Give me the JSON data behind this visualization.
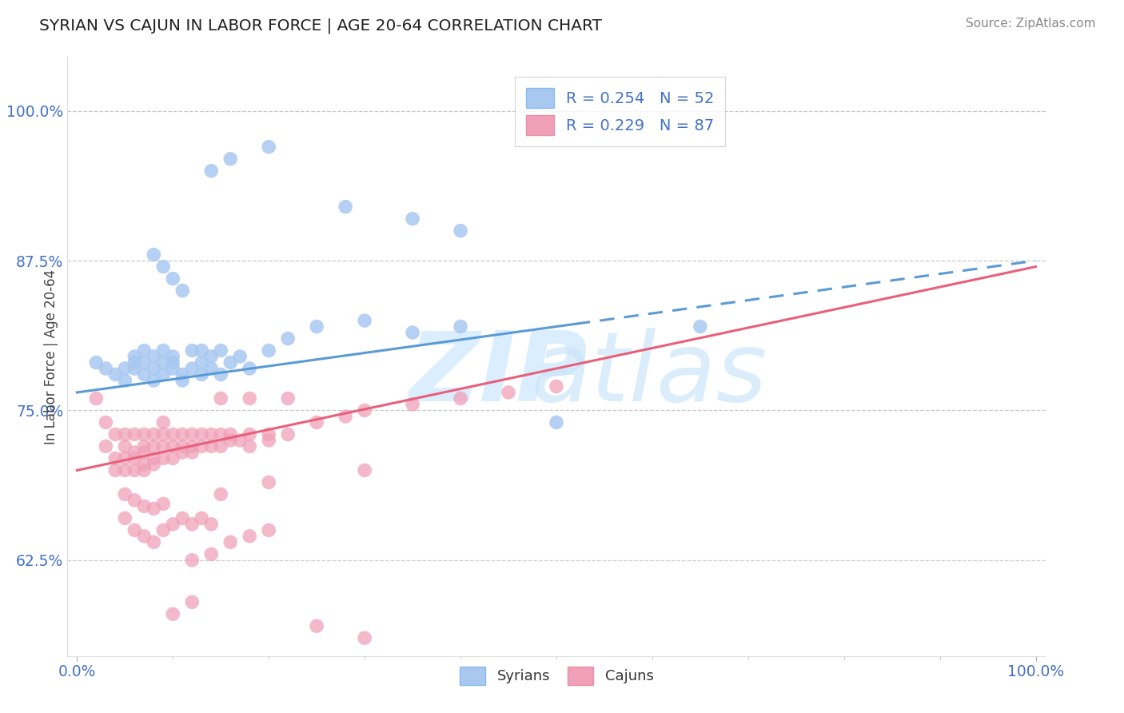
{
  "title": "SYRIAN VS CAJUN IN LABOR FORCE | AGE 20-64 CORRELATION CHART",
  "source": "Source: ZipAtlas.com",
  "ylabel": "In Labor Force | Age 20-64",
  "ytick_labels": [
    "62.5%",
    "75.0%",
    "87.5%",
    "100.0%"
  ],
  "ytick_values": [
    0.625,
    0.75,
    0.875,
    1.0
  ],
  "xlim": [
    -0.01,
    1.01
  ],
  "ylim": [
    0.545,
    1.045
  ],
  "legend_syrian": "R = 0.254   N = 52",
  "legend_cajun": "R = 0.229   N = 87",
  "color_syrian": "#a8c8f0",
  "color_cajun": "#f0a0b8",
  "color_line_syrian": "#5b9bd5",
  "color_line_cajun": "#e8607a",
  "trend_s_x0": 0.0,
  "trend_s_x1": 1.0,
  "trend_s_y0": 0.765,
  "trend_s_y1": 0.875,
  "trend_s_solid_end": 0.52,
  "trend_c_x0": 0.0,
  "trend_c_x1": 1.0,
  "trend_c_y0": 0.7,
  "trend_c_y1": 0.87,
  "syrian_x": [
    0.02,
    0.03,
    0.04,
    0.05,
    0.05,
    0.06,
    0.06,
    0.06,
    0.07,
    0.07,
    0.07,
    0.08,
    0.08,
    0.08,
    0.09,
    0.09,
    0.09,
    0.1,
    0.1,
    0.1,
    0.11,
    0.11,
    0.12,
    0.12,
    0.13,
    0.13,
    0.13,
    0.14,
    0.14,
    0.15,
    0.15,
    0.16,
    0.17,
    0.18,
    0.2,
    0.22,
    0.25,
    0.3,
    0.35,
    0.4,
    0.08,
    0.09,
    0.1,
    0.11,
    0.14,
    0.16,
    0.2,
    0.28,
    0.35,
    0.4,
    0.5,
    0.65
  ],
  "syrian_y": [
    0.79,
    0.785,
    0.78,
    0.785,
    0.775,
    0.79,
    0.795,
    0.785,
    0.8,
    0.79,
    0.78,
    0.795,
    0.785,
    0.775,
    0.79,
    0.78,
    0.8,
    0.785,
    0.79,
    0.795,
    0.78,
    0.775,
    0.785,
    0.8,
    0.79,
    0.78,
    0.8,
    0.785,
    0.795,
    0.8,
    0.78,
    0.79,
    0.795,
    0.785,
    0.8,
    0.81,
    0.82,
    0.825,
    0.815,
    0.82,
    0.88,
    0.87,
    0.86,
    0.85,
    0.95,
    0.96,
    0.97,
    0.92,
    0.91,
    0.9,
    0.74,
    0.82
  ],
  "cajun_x": [
    0.02,
    0.03,
    0.03,
    0.04,
    0.04,
    0.04,
    0.05,
    0.05,
    0.05,
    0.05,
    0.06,
    0.06,
    0.06,
    0.06,
    0.07,
    0.07,
    0.07,
    0.07,
    0.07,
    0.08,
    0.08,
    0.08,
    0.08,
    0.09,
    0.09,
    0.09,
    0.09,
    0.1,
    0.1,
    0.1,
    0.11,
    0.11,
    0.11,
    0.12,
    0.12,
    0.12,
    0.13,
    0.13,
    0.14,
    0.14,
    0.15,
    0.15,
    0.16,
    0.16,
    0.17,
    0.18,
    0.18,
    0.2,
    0.2,
    0.22,
    0.25,
    0.28,
    0.3,
    0.35,
    0.4,
    0.45,
    0.5,
    0.15,
    0.18,
    0.22,
    0.05,
    0.06,
    0.07,
    0.08,
    0.09,
    0.1,
    0.11,
    0.12,
    0.13,
    0.14,
    0.05,
    0.06,
    0.07,
    0.08,
    0.09,
    0.15,
    0.2,
    0.3,
    0.12,
    0.14,
    0.16,
    0.18,
    0.2,
    0.1,
    0.12,
    0.25,
    0.3
  ],
  "cajun_y": [
    0.76,
    0.74,
    0.72,
    0.7,
    0.71,
    0.73,
    0.7,
    0.71,
    0.72,
    0.73,
    0.7,
    0.71,
    0.715,
    0.73,
    0.7,
    0.705,
    0.715,
    0.72,
    0.73,
    0.705,
    0.71,
    0.72,
    0.73,
    0.71,
    0.72,
    0.73,
    0.74,
    0.71,
    0.72,
    0.73,
    0.715,
    0.72,
    0.73,
    0.715,
    0.72,
    0.73,
    0.72,
    0.73,
    0.72,
    0.73,
    0.72,
    0.73,
    0.725,
    0.73,
    0.725,
    0.72,
    0.73,
    0.725,
    0.73,
    0.73,
    0.74,
    0.745,
    0.75,
    0.755,
    0.76,
    0.765,
    0.77,
    0.76,
    0.76,
    0.76,
    0.66,
    0.65,
    0.645,
    0.64,
    0.65,
    0.655,
    0.66,
    0.655,
    0.66,
    0.655,
    0.68,
    0.675,
    0.67,
    0.668,
    0.672,
    0.68,
    0.69,
    0.7,
    0.625,
    0.63,
    0.64,
    0.645,
    0.65,
    0.58,
    0.59,
    0.57,
    0.56
  ]
}
